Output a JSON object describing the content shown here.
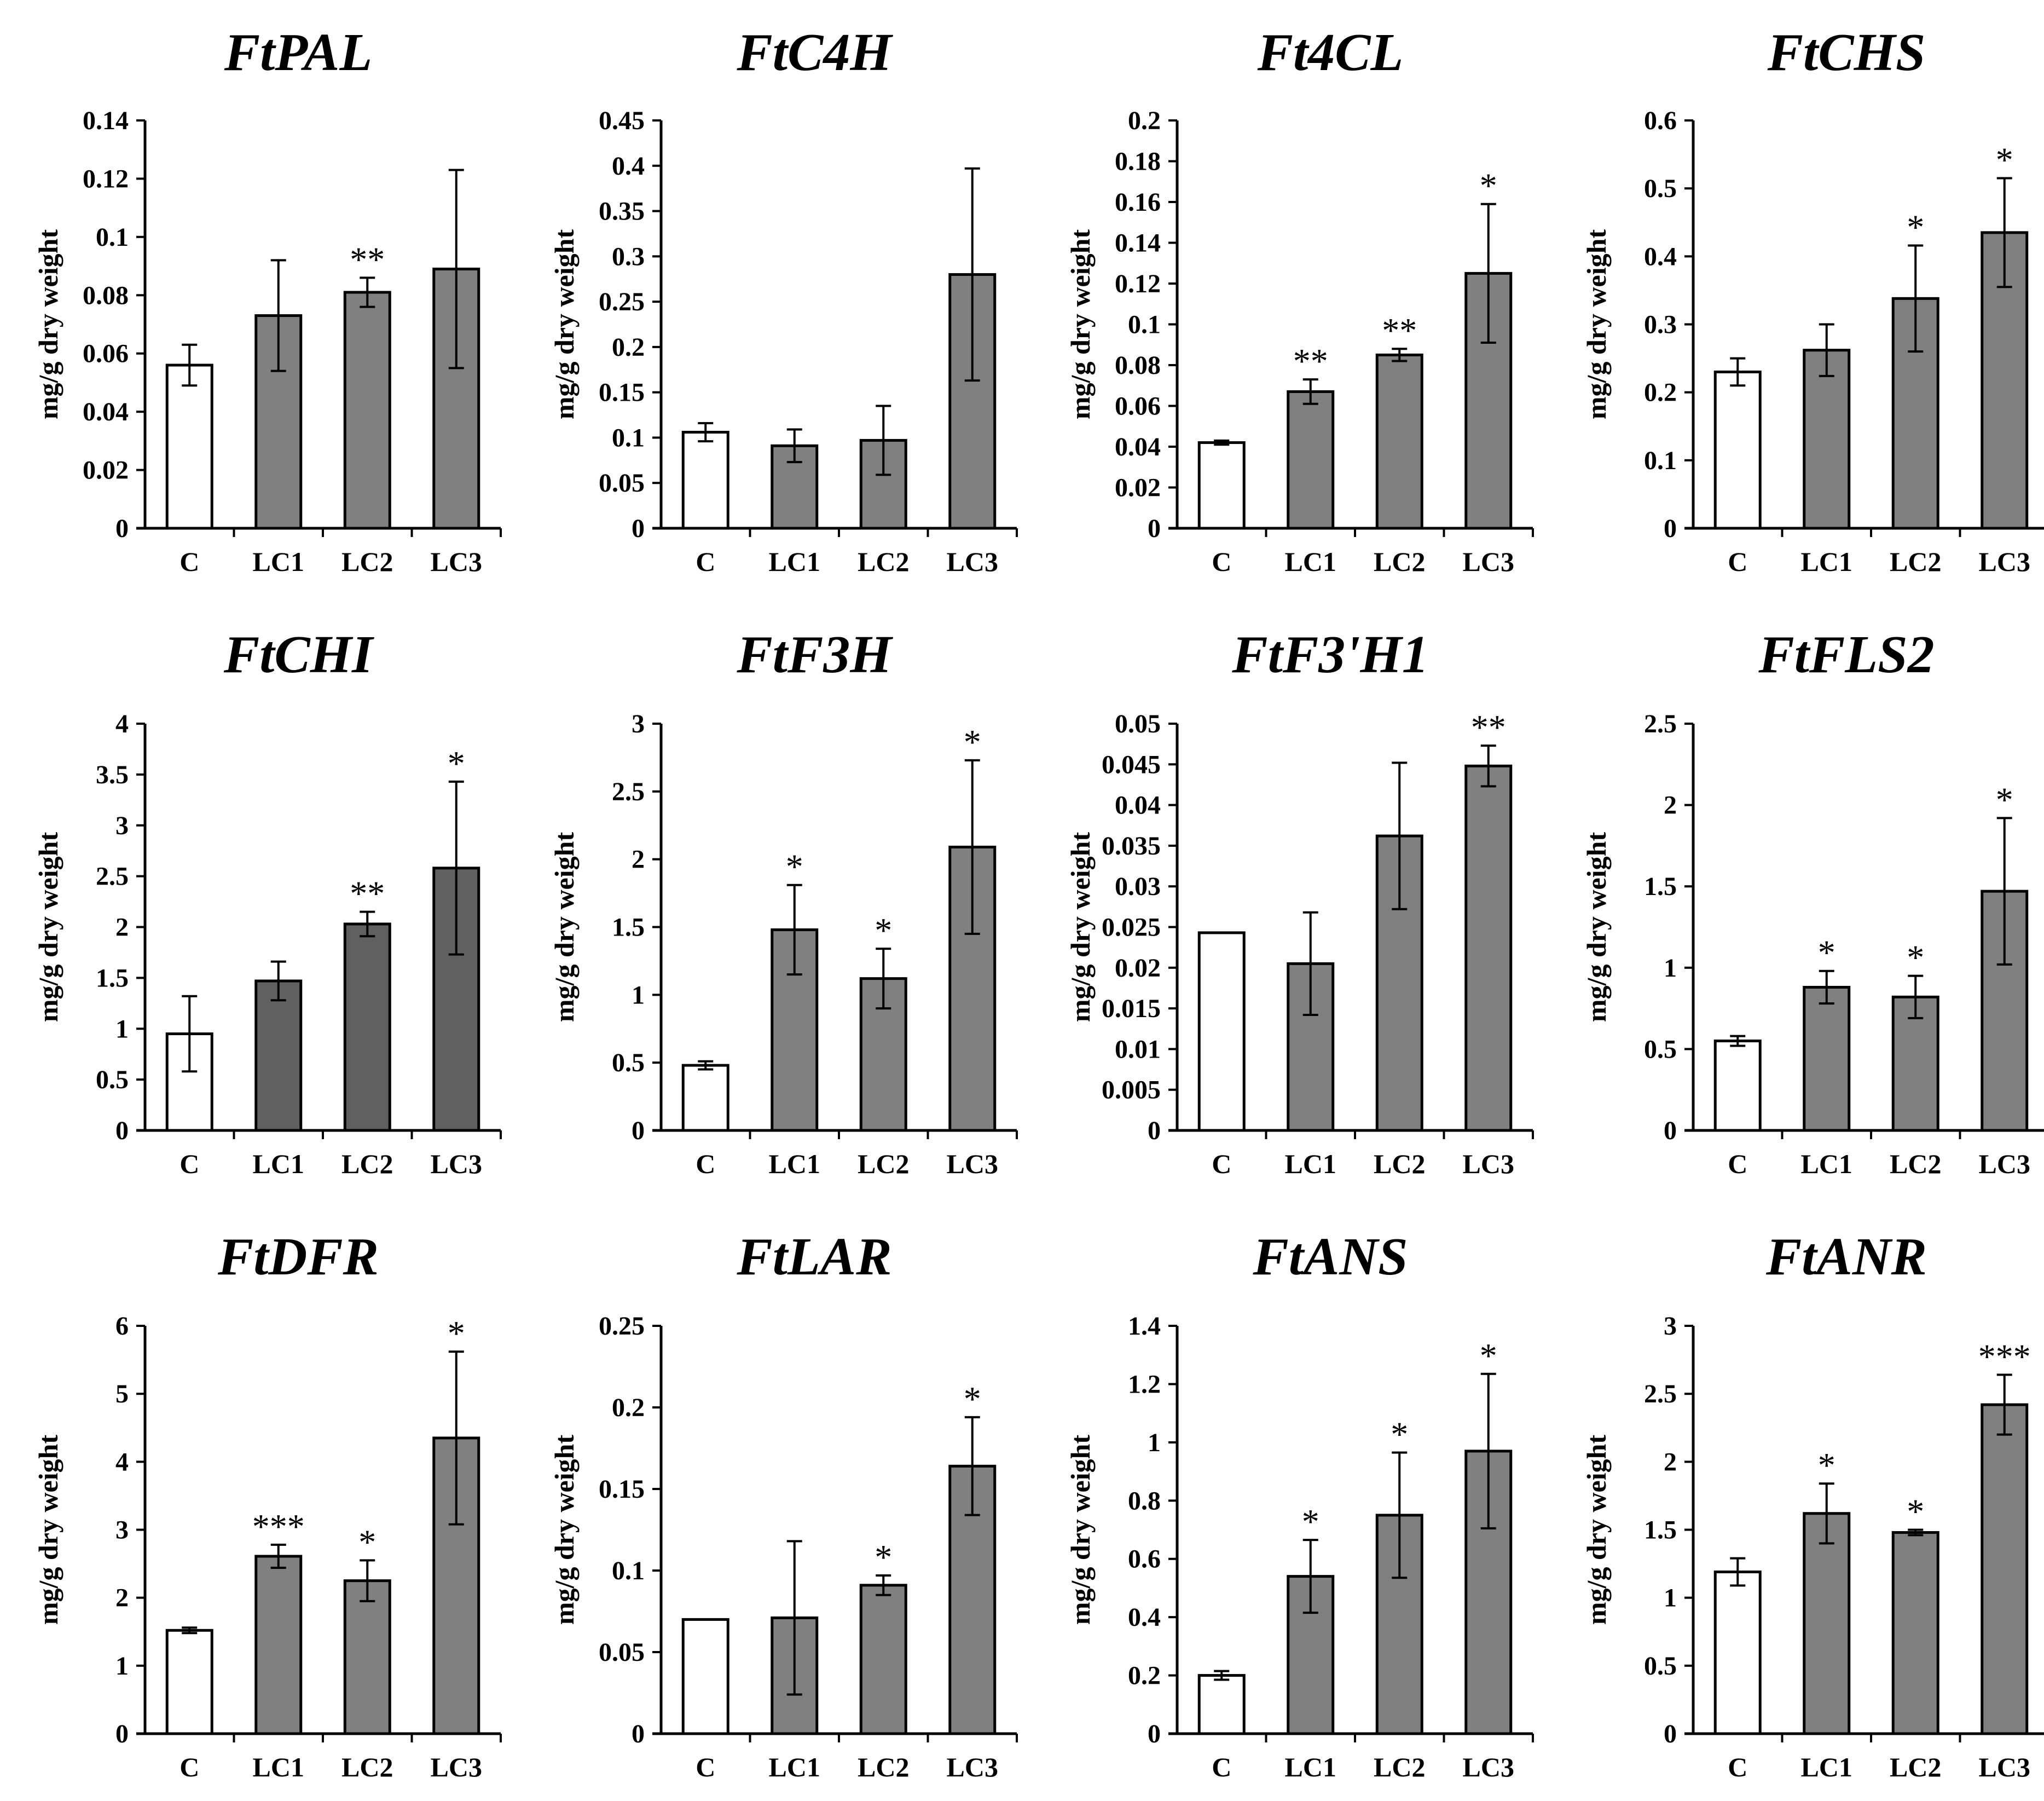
{
  "figure": {
    "bar_colors": {
      "control": "#ffffff",
      "treatment": "#808080",
      "treatment_dark": "#606060"
    },
    "axis_color": "#000000"
  },
  "chart_data": [
    {
      "type": "bar",
      "title": "FtPAL",
      "xlabel": "",
      "ylabel": "mg/g dry weight",
      "categories": [
        "C",
        "LC1",
        "LC2",
        "LC3"
      ],
      "values": [
        0.056,
        0.073,
        0.081,
        0.089
      ],
      "errors": [
        0.007,
        0.019,
        0.005,
        0.034
      ],
      "significance": [
        "",
        "",
        "**",
        ""
      ],
      "ylim": [
        0,
        0.14
      ],
      "yticks": [
        "0",
        "0.02",
        "0.04",
        "0.06",
        "0.08",
        "0.1",
        "0.12",
        "0.14"
      ],
      "grid": false
    },
    {
      "type": "bar",
      "title": "FtC4H",
      "xlabel": "",
      "ylabel": "mg/g dry weight",
      "categories": [
        "C",
        "LC1",
        "LC2",
        "LC3"
      ],
      "values": [
        0.106,
        0.091,
        0.097,
        0.28
      ],
      "errors": [
        0.01,
        0.018,
        0.038,
        0.117
      ],
      "significance": [
        "",
        "",
        "",
        ""
      ],
      "ylim": [
        0,
        0.45
      ],
      "yticks": [
        "0",
        "0.05",
        "0.1",
        "0.15",
        "0.2",
        "0.25",
        "0.3",
        "0.35",
        "0.4",
        "0.45"
      ],
      "grid": false
    },
    {
      "type": "bar",
      "title": "Ft4CL",
      "xlabel": "",
      "ylabel": "mg/g dry weight",
      "categories": [
        "C",
        "LC1",
        "LC2",
        "LC3"
      ],
      "values": [
        0.042,
        0.067,
        0.085,
        0.125
      ],
      "errors": [
        0.001,
        0.006,
        0.003,
        0.034
      ],
      "significance": [
        "",
        "**",
        "**",
        "*"
      ],
      "ylim": [
        0,
        0.2
      ],
      "yticks": [
        "0",
        "0.02",
        "0.04",
        "0.06",
        "0.08",
        "0.1",
        "0.12",
        "0.14",
        "0.16",
        "0.18",
        "0.2"
      ],
      "grid": false
    },
    {
      "type": "bar",
      "title": "FtCHS",
      "xlabel": "",
      "ylabel": "mg/g dry weight",
      "categories": [
        "C",
        "LC1",
        "LC2",
        "LC3"
      ],
      "values": [
        0.23,
        0.262,
        0.338,
        0.435
      ],
      "errors": [
        0.02,
        0.038,
        0.078,
        0.08
      ],
      "significance": [
        "",
        "",
        "*",
        "*"
      ],
      "ylim": [
        0,
        0.6
      ],
      "yticks": [
        "0",
        "0.1",
        "0.2",
        "0.3",
        "0.4",
        "0.5",
        "0.6"
      ],
      "grid": false
    },
    {
      "type": "bar",
      "title": "FtCHI",
      "xlabel": "",
      "ylabel": "mg/g dry weight",
      "categories": [
        "C",
        "LC1",
        "LC2",
        "LC3"
      ],
      "values": [
        0.95,
        1.47,
        2.03,
        2.58
      ],
      "errors": [
        0.37,
        0.19,
        0.12,
        0.85
      ],
      "significance": [
        "",
        "",
        "**",
        "*"
      ],
      "ylim": [
        0,
        4
      ],
      "yticks": [
        "0",
        "0.5",
        "1",
        "1.5",
        "2",
        "2.5",
        "3",
        "3.5",
        "4"
      ],
      "grid": false
    },
    {
      "type": "bar",
      "title": "FtF3H",
      "xlabel": "",
      "ylabel": "mg/g dry weight",
      "categories": [
        "C",
        "LC1",
        "LC2",
        "LC3"
      ],
      "values": [
        0.48,
        1.48,
        1.12,
        2.09
      ],
      "errors": [
        0.03,
        0.33,
        0.22,
        0.64
      ],
      "significance": [
        "",
        "*",
        "*",
        "*"
      ],
      "ylim": [
        0,
        3
      ],
      "yticks": [
        "0",
        "0.5",
        "1",
        "1.5",
        "2",
        "2.5",
        "3"
      ],
      "grid": false
    },
    {
      "type": "bar",
      "title": "FtF3'H1",
      "xlabel": "",
      "ylabel": "mg/g dry weight",
      "categories": [
        "C",
        "LC1",
        "LC2",
        "LC3"
      ],
      "values": [
        0.0243,
        0.0205,
        0.0362,
        0.0448
      ],
      "errors": [
        0,
        0.0063,
        0.009,
        0.0025
      ],
      "significance": [
        "",
        "",
        "",
        "**"
      ],
      "ylim": [
        0,
        0.05
      ],
      "yticks": [
        "0",
        "0.005",
        "0.01",
        "0.015",
        "0.02",
        "0.025",
        "0.03",
        "0.035",
        "0.04",
        "0.045",
        "0.05"
      ],
      "grid": false
    },
    {
      "type": "bar",
      "title": "FtFLS2",
      "xlabel": "",
      "ylabel": "mg/g dry weight",
      "categories": [
        "C",
        "LC1",
        "LC2",
        "LC3"
      ],
      "values": [
        0.55,
        0.88,
        0.82,
        1.47
      ],
      "errors": [
        0.03,
        0.1,
        0.13,
        0.45
      ],
      "significance": [
        "",
        "*",
        "*",
        "*"
      ],
      "ylim": [
        0,
        2.5
      ],
      "yticks": [
        "0",
        "0.5",
        "1",
        "1.5",
        "2",
        "2.5"
      ],
      "grid": false
    },
    {
      "type": "bar",
      "title": "FtDFR",
      "xlabel": "",
      "ylabel": "mg/g dry weight",
      "categories": [
        "C",
        "LC1",
        "LC2",
        "LC3"
      ],
      "values": [
        1.52,
        2.61,
        2.25,
        4.35
      ],
      "errors": [
        0.04,
        0.17,
        0.3,
        1.27
      ],
      "significance": [
        "",
        "***",
        "*",
        "*"
      ],
      "ylim": [
        0,
        6
      ],
      "yticks": [
        "0",
        "1",
        "2",
        "3",
        "4",
        "5",
        "6"
      ],
      "grid": false
    },
    {
      "type": "bar",
      "title": "FtLAR",
      "xlabel": "",
      "ylabel": "mg/g dry weight",
      "categories": [
        "C",
        "LC1",
        "LC2",
        "LC3"
      ],
      "values": [
        0.07,
        0.071,
        0.091,
        0.164
      ],
      "errors": [
        0,
        0.047,
        0.006,
        0.03
      ],
      "significance": [
        "",
        "",
        "*",
        "*"
      ],
      "ylim": [
        0,
        0.25
      ],
      "yticks": [
        "0",
        "0.05",
        "0.1",
        "0.15",
        "0.2",
        "0.25"
      ],
      "grid": false
    },
    {
      "type": "bar",
      "title": "FtANS",
      "xlabel": "",
      "ylabel": "mg/g dry weight",
      "categories": [
        "C",
        "LC1",
        "LC2",
        "LC3"
      ],
      "values": [
        0.2,
        0.54,
        0.75,
        0.97
      ],
      "errors": [
        0.015,
        0.125,
        0.215,
        0.265
      ],
      "significance": [
        "",
        "*",
        "*",
        "*"
      ],
      "ylim": [
        0,
        1.4
      ],
      "yticks": [
        "0",
        "0.2",
        "0.4",
        "0.6",
        "0.8",
        "1",
        "1.2",
        "1.4"
      ],
      "grid": false
    },
    {
      "type": "bar",
      "title": "FtANR",
      "xlabel": "",
      "ylabel": "mg/g dry weight",
      "categories": [
        "C",
        "LC1",
        "LC2",
        "LC3"
      ],
      "values": [
        1.19,
        1.62,
        1.48,
        2.42
      ],
      "errors": [
        0.1,
        0.22,
        0.02,
        0.22
      ],
      "significance": [
        "",
        "*",
        "*",
        "***"
      ],
      "ylim": [
        0,
        3
      ],
      "yticks": [
        "0",
        "0.5",
        "1",
        "1.5",
        "2",
        "2.5",
        "3"
      ],
      "grid": false
    }
  ]
}
